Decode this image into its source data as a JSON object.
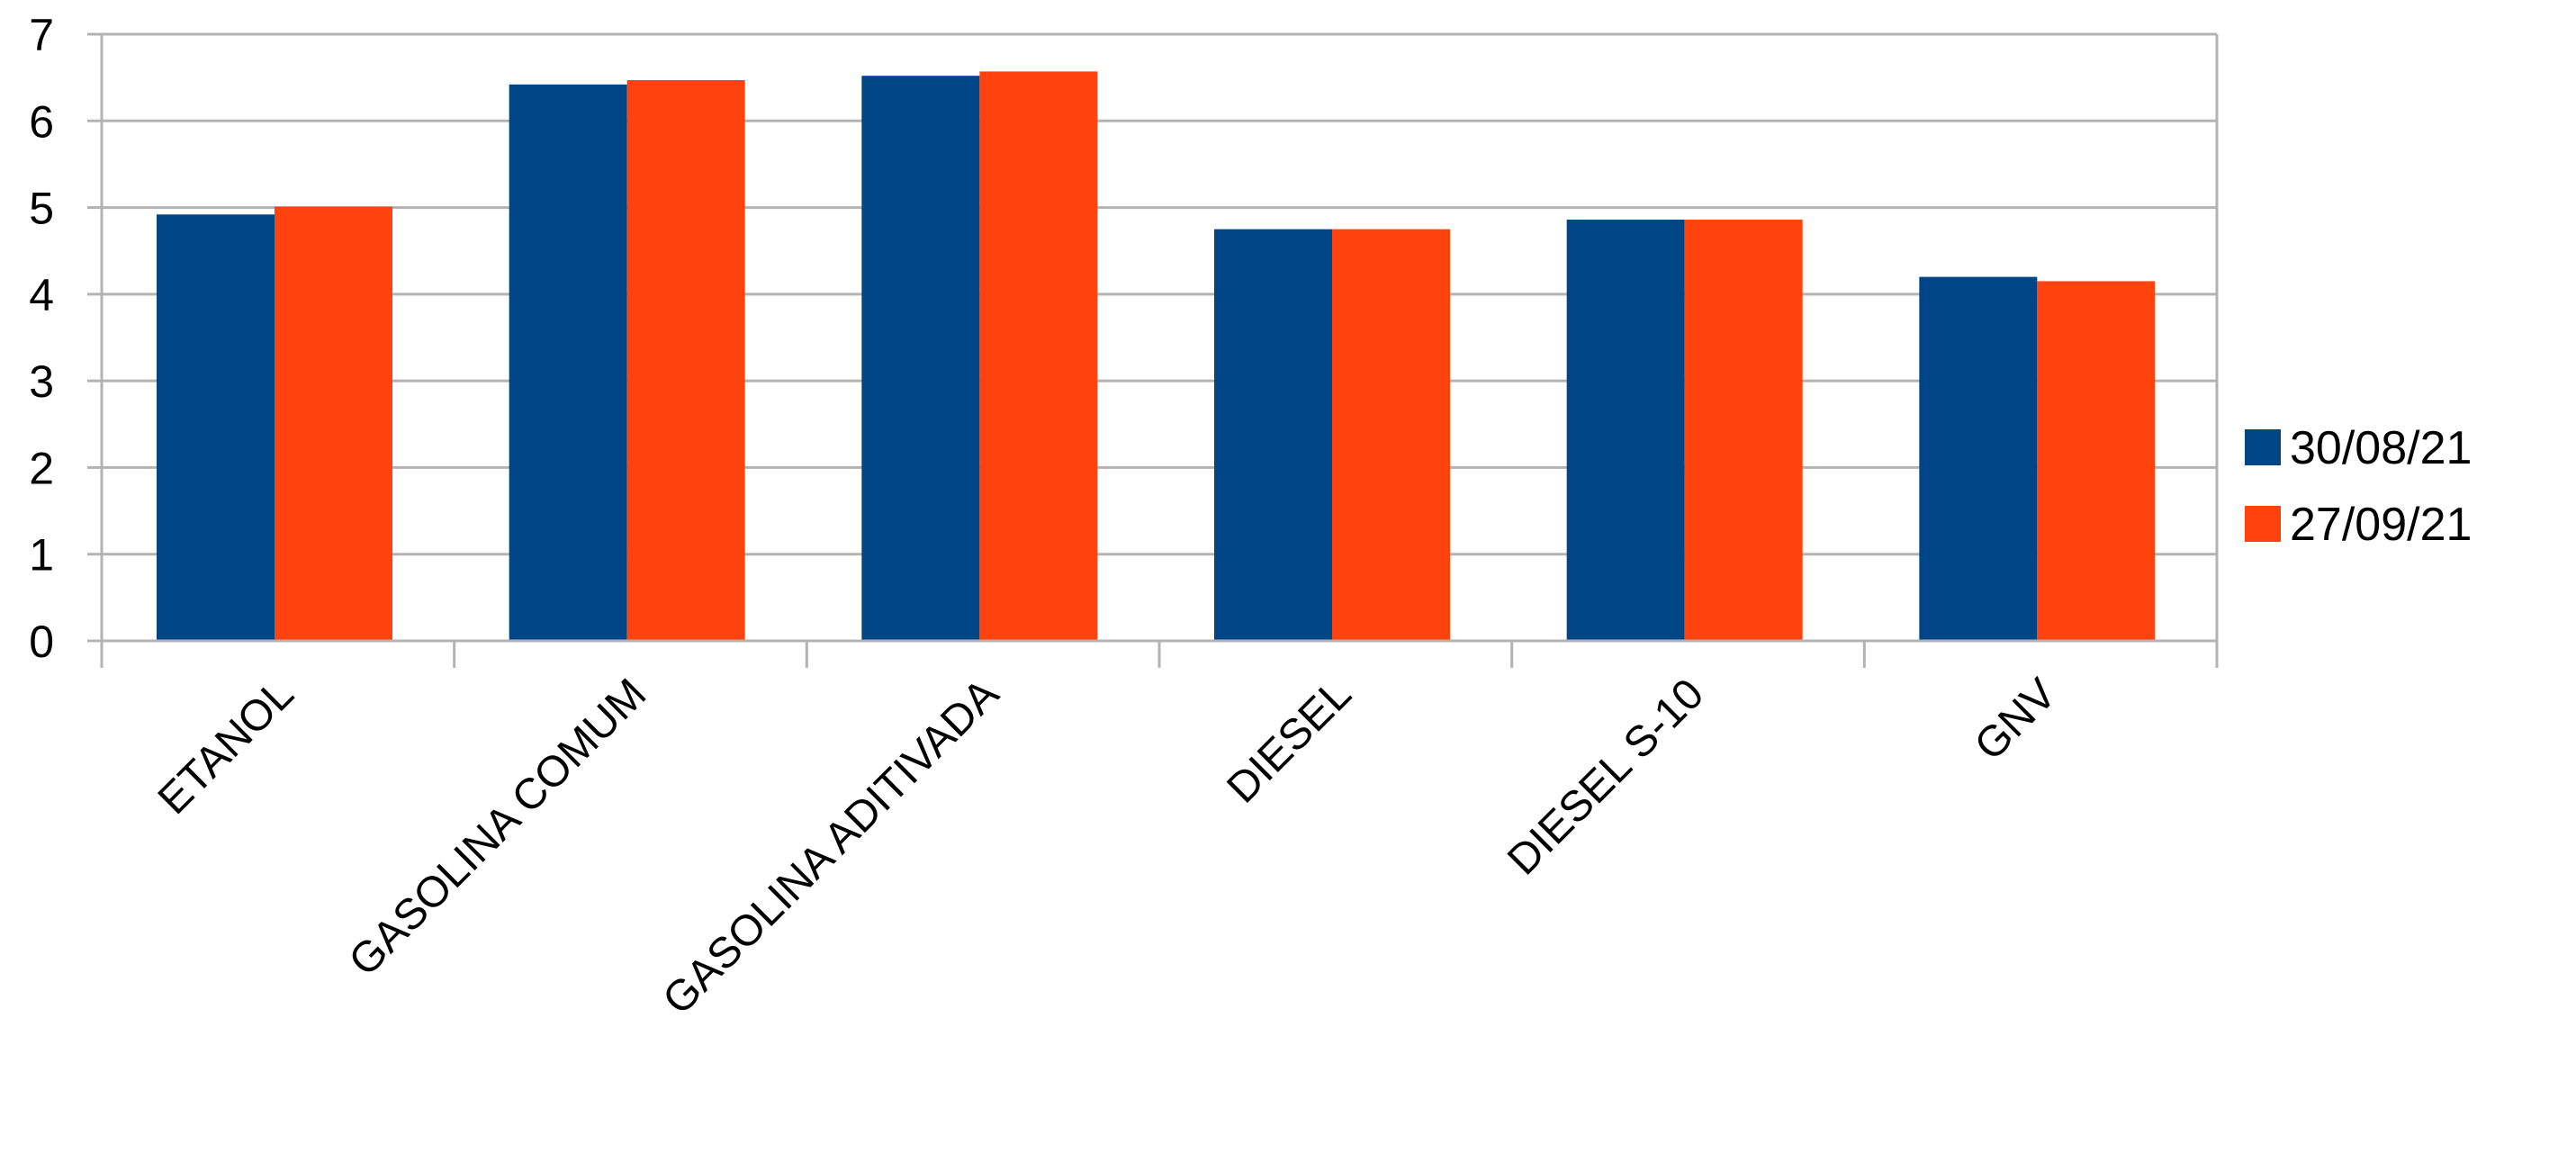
{
  "chart_data": {
    "type": "bar",
    "categories": [
      "ETANOL",
      "GASOLINA COMUM",
      "GASOLINA ADITIVADA",
      "DIESEL",
      "DIESEL S-10",
      "GNV"
    ],
    "series": [
      {
        "name": "30/08/21",
        "color": "#004586",
        "values": [
          4.92,
          6.42,
          6.52,
          4.75,
          4.86,
          4.2
        ]
      },
      {
        "name": "27/09/21",
        "color": "#ff420e",
        "values": [
          5.01,
          6.47,
          6.57,
          4.75,
          4.86,
          4.15
        ]
      }
    ],
    "ylim": [
      0,
      7
    ],
    "yticks": [
      "0",
      "1",
      "2",
      "3",
      "4",
      "5",
      "6",
      "7"
    ],
    "grid": true,
    "legend": "right"
  }
}
